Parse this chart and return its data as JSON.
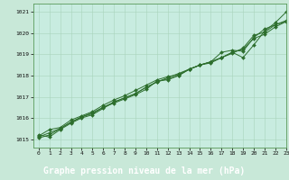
{
  "title": "Graphe pression niveau de la mer (hPa)",
  "background_color": "#c8e8d8",
  "plot_bg_color": "#c8ece0",
  "grid_color": "#a8d4bc",
  "line_color": "#2d6e2d",
  "label_bg_color": "#3a7a3a",
  "label_text_color": "#ffffff",
  "xlim": [
    -0.5,
    23
  ],
  "ylim": [
    1014.6,
    1021.4
  ],
  "xticks": [
    0,
    1,
    2,
    3,
    4,
    5,
    6,
    7,
    8,
    9,
    10,
    11,
    12,
    13,
    14,
    15,
    16,
    17,
    18,
    19,
    20,
    21,
    22,
    23
  ],
  "yticks": [
    1015,
    1016,
    1017,
    1018,
    1019,
    1020,
    1021
  ],
  "series": [
    [
      1015.15,
      1015.45,
      1015.55,
      1015.9,
      1016.1,
      1016.3,
      1016.6,
      1016.85,
      1017.05,
      1017.3,
      1017.55,
      1017.8,
      1017.95,
      1018.05,
      1018.3,
      1018.5,
      1018.65,
      1018.85,
      1019.05,
      1019.3,
      1019.9,
      1020.05,
      1020.4,
      1020.55
    ],
    [
      1015.2,
      1015.1,
      1015.45,
      1015.75,
      1016.0,
      1016.15,
      1016.45,
      1016.75,
      1016.95,
      1017.15,
      1017.45,
      1017.7,
      1017.85,
      1018.0,
      1018.3,
      1018.5,
      1018.6,
      1018.85,
      1019.1,
      1018.85,
      1019.45,
      1020.1,
      1020.5,
      1021.0
    ],
    [
      1015.05,
      1015.2,
      1015.5,
      1015.8,
      1016.05,
      1016.2,
      1016.5,
      1016.7,
      1016.9,
      1017.1,
      1017.35,
      1017.75,
      1017.8,
      1018.0,
      1018.3,
      1018.5,
      1018.65,
      1019.1,
      1019.2,
      1019.15,
      1019.8,
      1020.2,
      1020.4,
      1020.6
    ],
    [
      1015.1,
      1015.3,
      1015.5,
      1015.8,
      1016.05,
      1016.25,
      1016.5,
      1016.75,
      1016.95,
      1017.15,
      1017.45,
      1017.7,
      1017.9,
      1018.1,
      1018.3,
      1018.5,
      1018.65,
      1018.85,
      1019.1,
      1019.25,
      1019.75,
      1019.95,
      1020.3,
      1020.55
    ]
  ]
}
